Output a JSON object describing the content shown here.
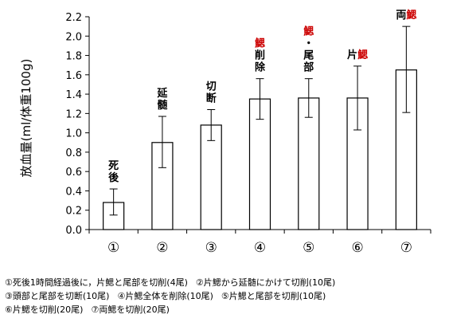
{
  "chart_data": {
    "type": "bar",
    "ylabel": "放血量(ml/体重100g)",
    "ylim": [
      0,
      2.2
    ],
    "yticks": [
      "0.0",
      "0.2",
      "0.4",
      "0.6",
      "0.8",
      "1.0",
      "1.2",
      "1.4",
      "1.6",
      "1.8",
      "2.0",
      "2.2"
    ],
    "categories": [
      "①",
      "②",
      "③",
      "④",
      "⑤",
      "⑥",
      "⑦"
    ],
    "values": [
      0.28,
      0.9,
      1.08,
      1.35,
      1.36,
      1.36,
      1.65
    ],
    "error_bars": [
      {
        "low": 0.15,
        "high": 0.42
      },
      {
        "low": 0.64,
        "high": 1.17
      },
      {
        "low": 0.92,
        "high": 1.24
      },
      {
        "low": 1.14,
        "high": 1.56
      },
      {
        "low": 1.16,
        "high": 1.56
      },
      {
        "low": 1.03,
        "high": 1.69
      },
      {
        "low": 1.21,
        "high": 2.1
      }
    ],
    "bar_labels": [
      {
        "lines": [
          {
            "black": "死",
            "red": ""
          },
          {
            "black": "後",
            "red": ""
          }
        ]
      },
      {
        "lines": [
          {
            "black": "延",
            "red": ""
          },
          {
            "black": "髄",
            "red": ""
          }
        ]
      },
      {
        "lines": [
          {
            "black": "切",
            "red": ""
          },
          {
            "black": "断",
            "red": ""
          }
        ]
      },
      {
        "lines": [
          {
            "black": "",
            "red": "鰓"
          },
          {
            "black": "削",
            "red": ""
          },
          {
            "black": "除",
            "red": ""
          }
        ]
      },
      {
        "lines": [
          {
            "black": "",
            "red": "鰓"
          },
          {
            "black": "・",
            "red": ""
          },
          {
            "black": "尾",
            "red": ""
          },
          {
            "black": "部",
            "red": ""
          }
        ]
      },
      {
        "lines": [
          {
            "black": "片",
            "red": "鰓"
          }
        ]
      },
      {
        "lines": [
          {
            "black": "両",
            "red": "鰓"
          }
        ]
      }
    ],
    "grid": false,
    "legend": "none",
    "colors": {
      "bar_fill": "#ffffff",
      "bar_stroke": "#000000",
      "highlight": "#cc0000"
    }
  },
  "notes": [
    [
      "①死後1時間経過後に，片鰓と尾部を切削(4尾)",
      "②片鰓から延髄にかけて切削(10尾)"
    ],
    [
      "③頭部と尾部を切断(10尾)",
      "④片鰓全体を削除(10尾)",
      "⑤片鰓と尾部を切削(10尾)"
    ],
    [
      "⑥片鰓を切削(20尾)",
      "⑦両鰓を切削(20尾)"
    ]
  ]
}
